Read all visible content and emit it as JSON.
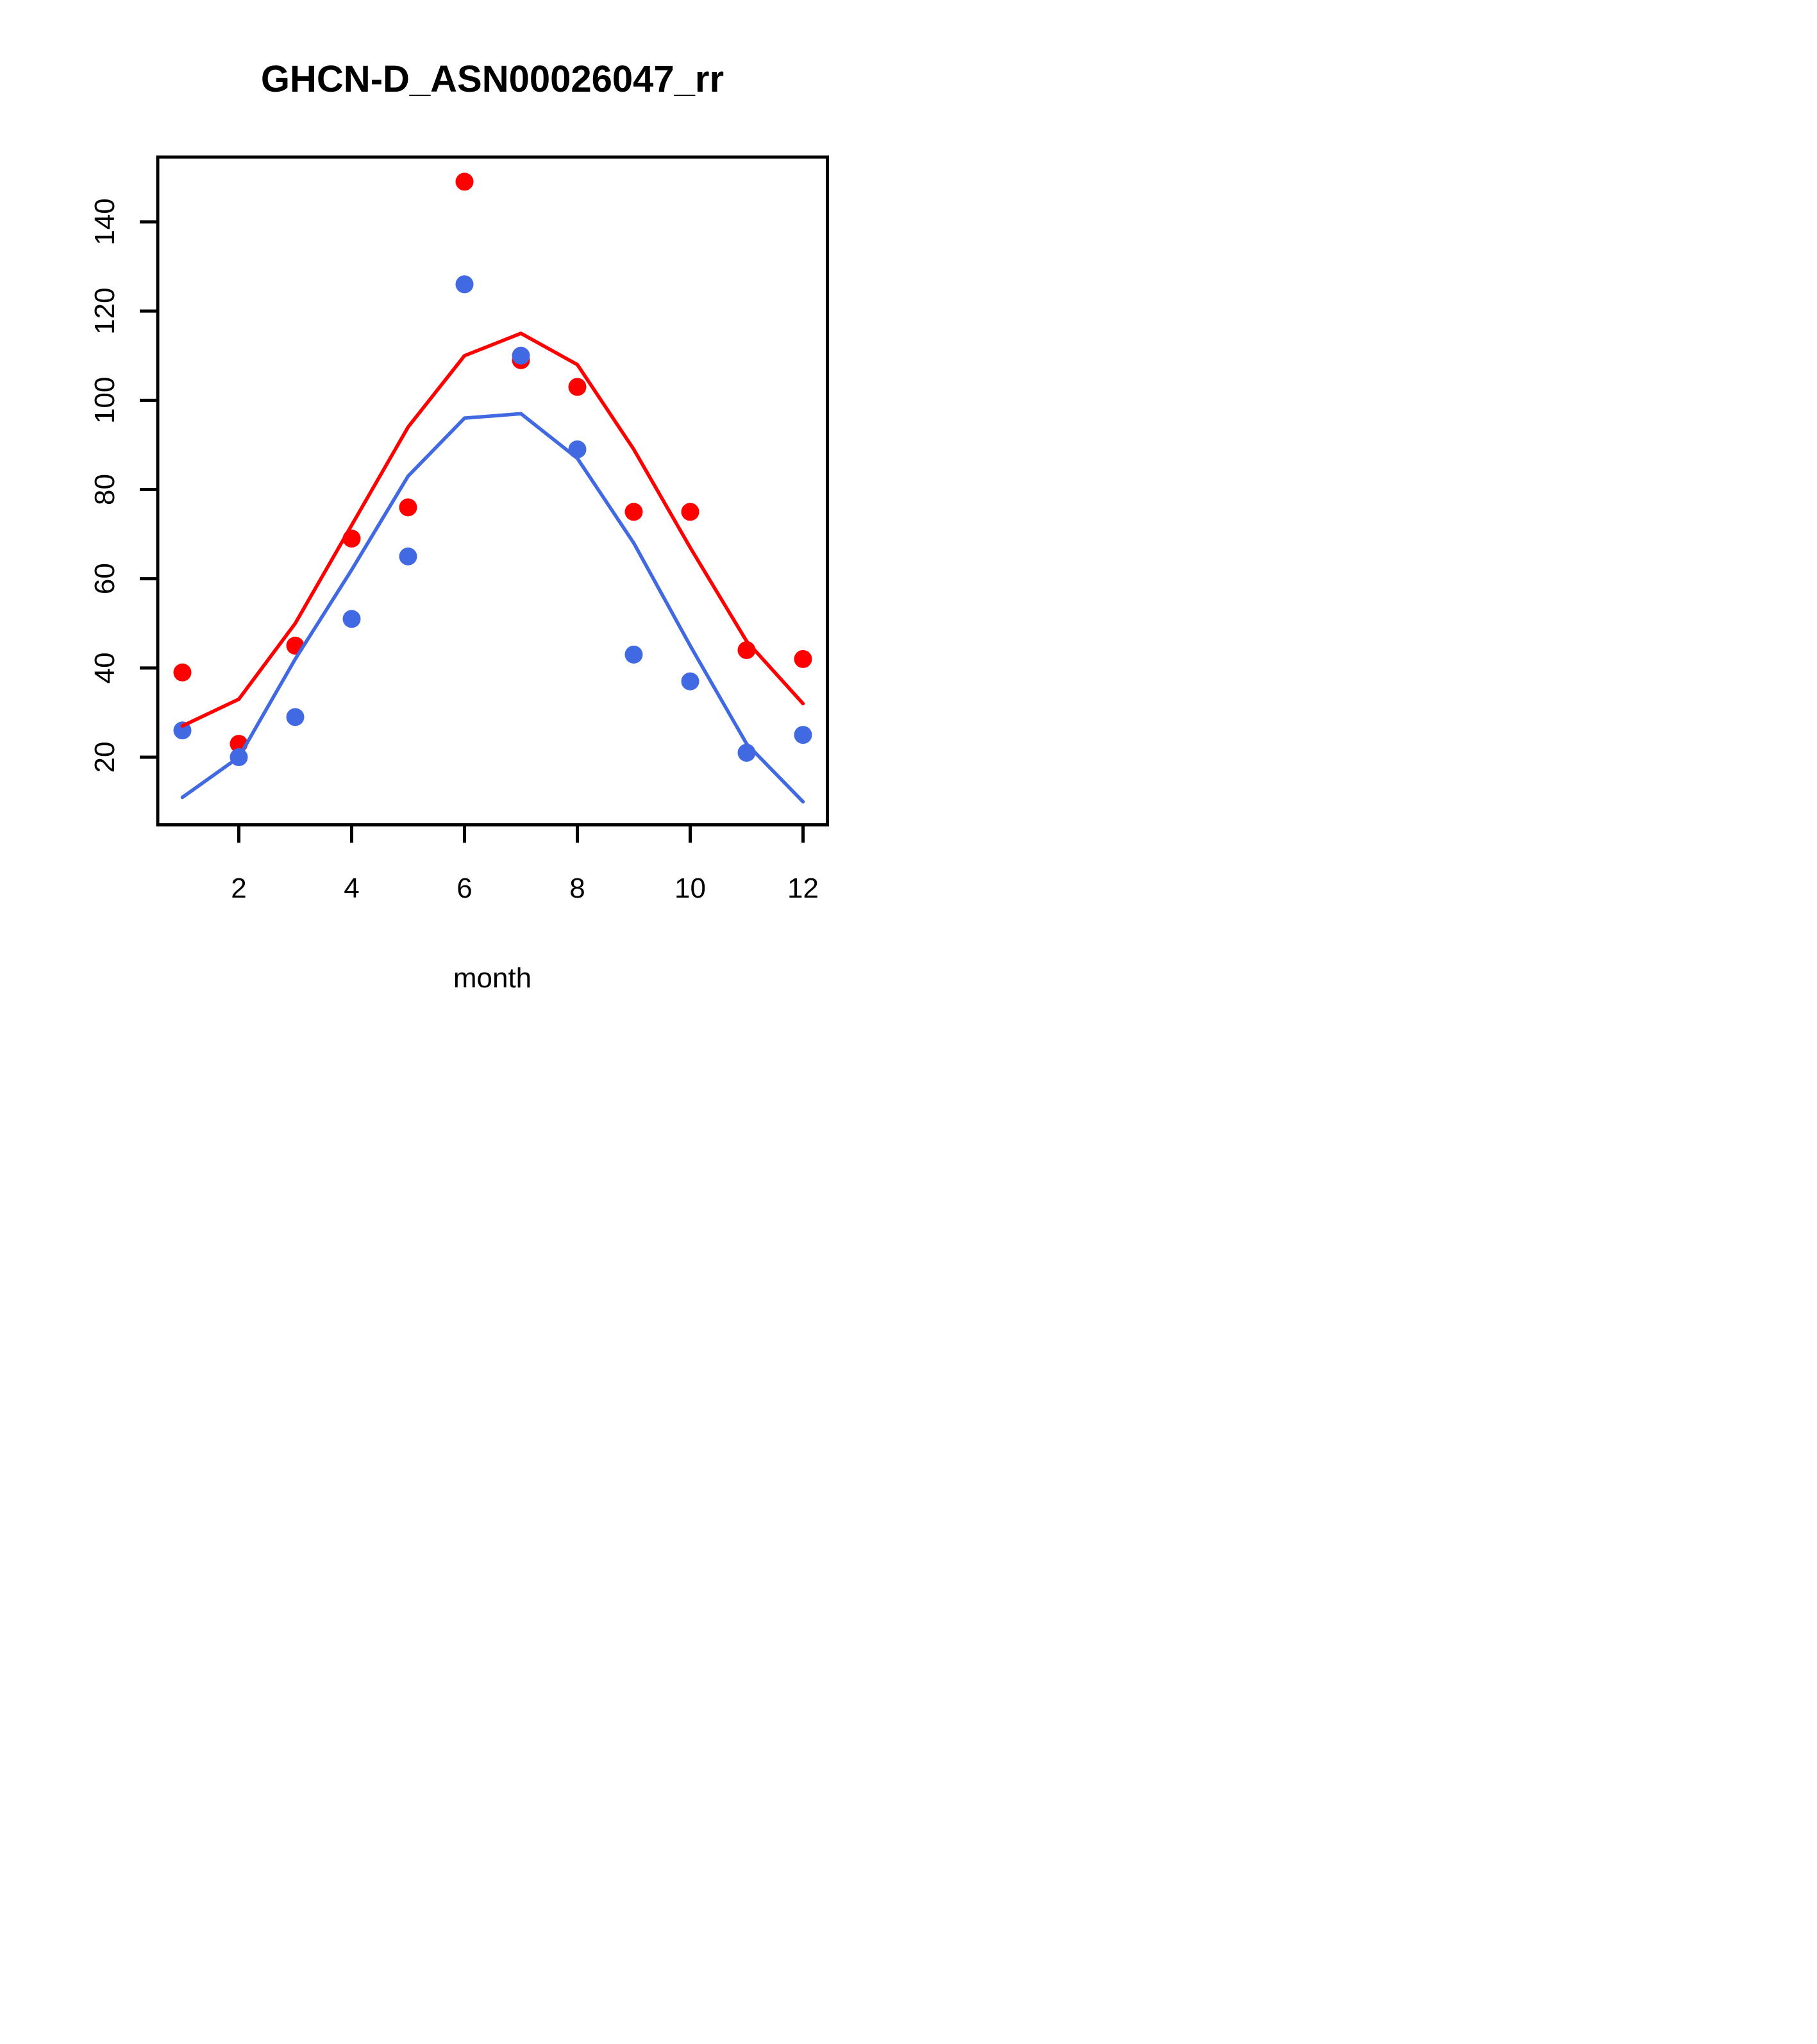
{
  "title": "GHCN-D_ASN00026047_rr",
  "x_axis": {
    "label": "month",
    "ticks": [
      2,
      4,
      6,
      8,
      10,
      12
    ],
    "range": [
      0.56,
      12.43
    ]
  },
  "y_axis": {
    "label": "",
    "ticks": [
      20,
      40,
      60,
      80,
      100,
      120,
      140
    ],
    "range": [
      4.8,
      154.5
    ]
  },
  "colors": {
    "red": "#FF0000",
    "blue": "#4169E1",
    "axis": "#000000",
    "background": "#FFFFFF"
  },
  "chart_data": {
    "type": "scatter",
    "title": "GHCN-D_ASN00026047_rr",
    "xlabel": "month",
    "ylabel": "",
    "x": [
      1,
      2,
      3,
      4,
      5,
      6,
      7,
      8,
      9,
      10,
      11,
      12
    ],
    "xlim": [
      0.56,
      12.43
    ],
    "ylim": [
      4.8,
      154.5
    ],
    "grid": false,
    "legend": "none",
    "series": [
      {
        "name": "red-points",
        "style": "points",
        "color": "red",
        "values": [
          39,
          23,
          45,
          69,
          76,
          149,
          109,
          103,
          75,
          75,
          44,
          42
        ]
      },
      {
        "name": "blue-points",
        "style": "points",
        "color": "blue",
        "values": [
          26,
          20,
          29,
          51,
          65,
          126,
          110,
          89,
          43,
          37,
          21,
          25
        ]
      },
      {
        "name": "red-line",
        "style": "line",
        "color": "red",
        "values": [
          27,
          33,
          50,
          72,
          94,
          110,
          115,
          108,
          89,
          67,
          46,
          32
        ]
      },
      {
        "name": "blue-line",
        "style": "line",
        "color": "blue",
        "values": [
          11,
          20,
          42,
          62,
          83,
          96,
          97,
          87,
          68,
          45,
          23,
          10
        ]
      }
    ]
  }
}
